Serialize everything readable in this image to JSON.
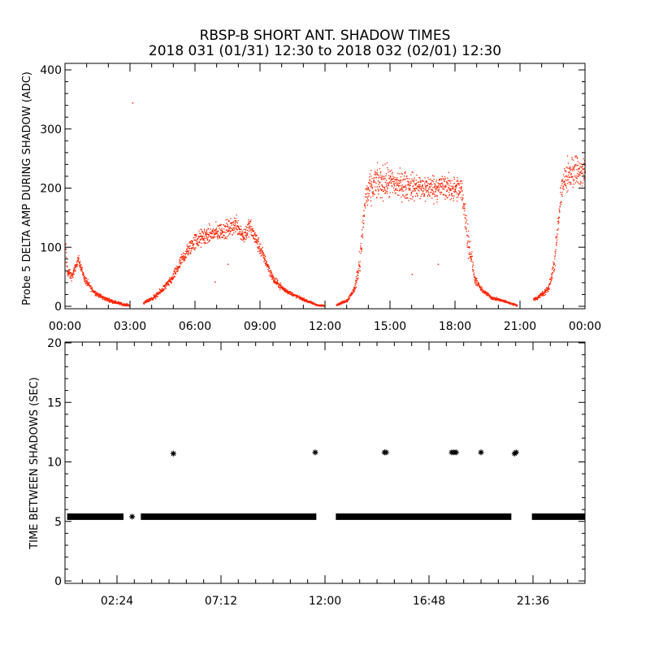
{
  "title_line1": "RBSP-B SHORT ANT. SHADOW TIMES",
  "title_line2": "2018 031 (01/31) 12:30 to 2018 032 (02/01) 12:30",
  "chart_data": [
    {
      "type": "scatter",
      "ylabel": "Probe 5 DELTA AMP DURING SHADOW (ADC)",
      "xlim": [
        0,
        24
      ],
      "ylim": [
        0,
        400
      ],
      "yticks": [
        0,
        100,
        200,
        300,
        400
      ],
      "xtick_labels": [
        "00:00",
        "03:00",
        "06:00",
        "09:00",
        "12:00",
        "15:00",
        "18:00",
        "21:00",
        "00:00"
      ],
      "series_color": "#ff2200",
      "envelope": {
        "x_hours": [
          0,
          0.1,
          0.3,
          0.6,
          0.9,
          1.3,
          1.7,
          2.2,
          2.7,
          2.95,
          3.6,
          4.2,
          4.9,
          5.4,
          5.9,
          6.4,
          7.0,
          7.6,
          7.9,
          8.2,
          8.5,
          8.8,
          9.2,
          9.6,
          10.1,
          10.6,
          11.2,
          11.7,
          12.5,
          13.0,
          13.35,
          13.6,
          13.85,
          14.3,
          14.8,
          15.5,
          16.5,
          17.5,
          18.3,
          18.6,
          18.9,
          19.2,
          19.7,
          20.3,
          20.8,
          21.0,
          21.2,
          21.8,
          22.3,
          22.6,
          22.85,
          23.1,
          23.5,
          23.9,
          24.0
        ],
        "y_center": [
          95,
          58,
          50,
          80,
          45,
          25,
          15,
          8,
          3,
          2,
          5,
          18,
          45,
          80,
          108,
          118,
          125,
          132,
          140,
          118,
          135,
          112,
          80,
          45,
          28,
          18,
          8,
          1,
          2,
          10,
          30,
          80,
          185,
          208,
          210,
          205,
          200,
          202,
          195,
          110,
          45,
          28,
          14,
          8,
          2,
          1,
          5,
          15,
          30,
          80,
          190,
          218,
          230,
          225,
          220
        ],
        "y_spread": [
          40,
          14,
          10,
          10,
          10,
          6,
          5,
          4,
          3,
          2,
          3,
          6,
          10,
          16,
          22,
          22,
          22,
          22,
          24,
          22,
          22,
          20,
          14,
          10,
          6,
          4,
          3,
          2,
          2,
          4,
          8,
          30,
          40,
          40,
          40,
          36,
          32,
          32,
          32,
          40,
          10,
          6,
          4,
          3,
          2,
          2,
          3,
          5,
          8,
          30,
          30,
          38,
          40,
          40,
          40
        ]
      },
      "data_gaps_hours": [
        [
          2.95,
          3.6
        ],
        [
          11.95,
          12.5
        ],
        [
          20.85,
          21.6
        ]
      ],
      "outliers": [
        {
          "x": 3.1,
          "y": 345
        },
        {
          "x": 7.5,
          "y": 72
        },
        {
          "x": 6.9,
          "y": 42
        },
        {
          "x": 16.0,
          "y": 55
        },
        {
          "x": 17.2,
          "y": 72
        }
      ]
    },
    {
      "type": "scatter",
      "ylabel": "TIME BETWEEN SHADOWS (SEC)",
      "xlim": [
        0,
        24
      ],
      "ylim": [
        0,
        20
      ],
      "yticks": [
        0,
        5,
        10,
        15,
        20
      ],
      "xtick_labels": [
        "02:24",
        "07:12",
        "12:00",
        "16:48",
        "21:36"
      ],
      "xticks_hours": [
        2.4,
        7.2,
        12.0,
        16.8,
        21.6
      ],
      "series_color": "#000000",
      "marker": "*",
      "baseline_value": 5.4,
      "baseline_segments_hours": [
        [
          0.1,
          2.7
        ],
        [
          3.5,
          11.6
        ],
        [
          12.5,
          20.6
        ],
        [
          21.55,
          24.0
        ]
      ],
      "points": [
        {
          "x": 3.1,
          "y": 5.4
        },
        {
          "x": 5.0,
          "y": 10.7
        },
        {
          "x": 11.55,
          "y": 10.8
        },
        {
          "x": 14.75,
          "y": 10.8
        },
        {
          "x": 14.82,
          "y": 10.8
        },
        {
          "x": 17.85,
          "y": 10.8
        },
        {
          "x": 17.95,
          "y": 10.8
        },
        {
          "x": 18.05,
          "y": 10.8
        },
        {
          "x": 19.2,
          "y": 10.8
        },
        {
          "x": 20.75,
          "y": 10.7
        },
        {
          "x": 20.82,
          "y": 10.8
        }
      ]
    }
  ]
}
